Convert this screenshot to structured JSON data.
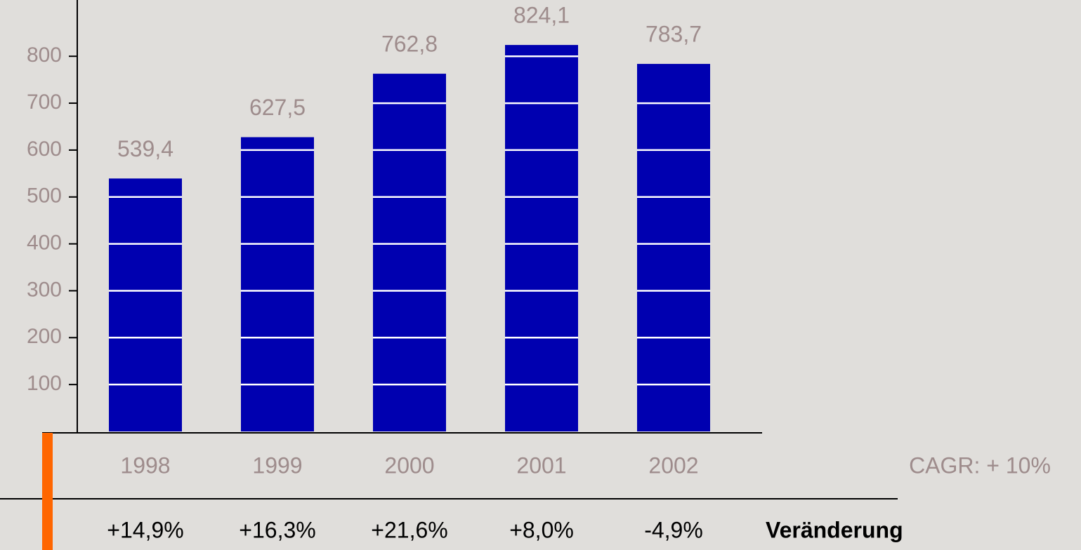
{
  "chart_data": {
    "type": "bar",
    "categories": [
      "1998",
      "1999",
      "2000",
      "2001",
      "2002"
    ],
    "values": [
      539.4,
      627.5,
      762.8,
      824.1,
      783.7
    ],
    "value_labels": [
      "539,4",
      "627,5",
      "762,8",
      "824,1",
      "783,7"
    ],
    "color": "#0000b0",
    "ylim": [
      0,
      920
    ],
    "yticks": [
      100,
      200,
      300,
      400,
      500,
      600,
      700,
      800
    ],
    "grid": true,
    "annotation": "CAGR: + 10%",
    "change_labels": [
      "+14,9%",
      "+16,3%",
      "+21,6%",
      "+8,0%",
      "-4,9%"
    ],
    "change_title": "Veränderung"
  }
}
